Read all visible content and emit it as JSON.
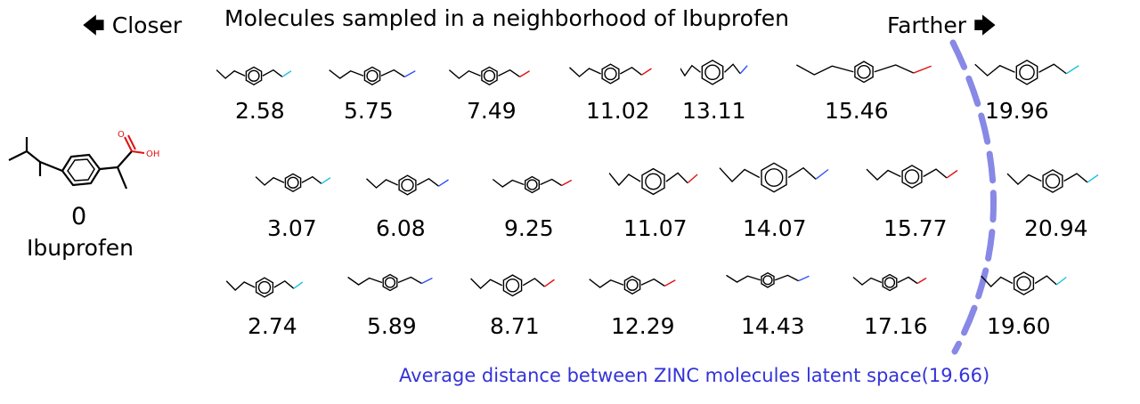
{
  "title": "Molecules sampled in a neighborhood of Ibuprofen",
  "closer_label": "Closer",
  "farther_label": "Farther",
  "reference": {
    "value": "0",
    "name": "Ibuprofen"
  },
  "distances": {
    "row1": [
      "2.58",
      "5.75",
      "7.49",
      "11.02",
      "13.11",
      "15.46",
      "19.96"
    ],
    "row2": [
      "3.07",
      "6.08",
      "9.25",
      "11.07",
      "14.07",
      "15.77",
      "20.94"
    ],
    "row3": [
      "2.74",
      "5.89",
      "8.71",
      "12.29",
      "14.43",
      "17.16",
      "19.60"
    ]
  },
  "average_note": "Average distance between ZINC molecules latent space(19.66)",
  "colors": {
    "divider": "#8888e6",
    "note": "#3333d8",
    "oxygen": "#e01010",
    "nitrogen": "#3050f8",
    "fluorine": "#20c0e0",
    "sulfur": "#c8c800"
  }
}
